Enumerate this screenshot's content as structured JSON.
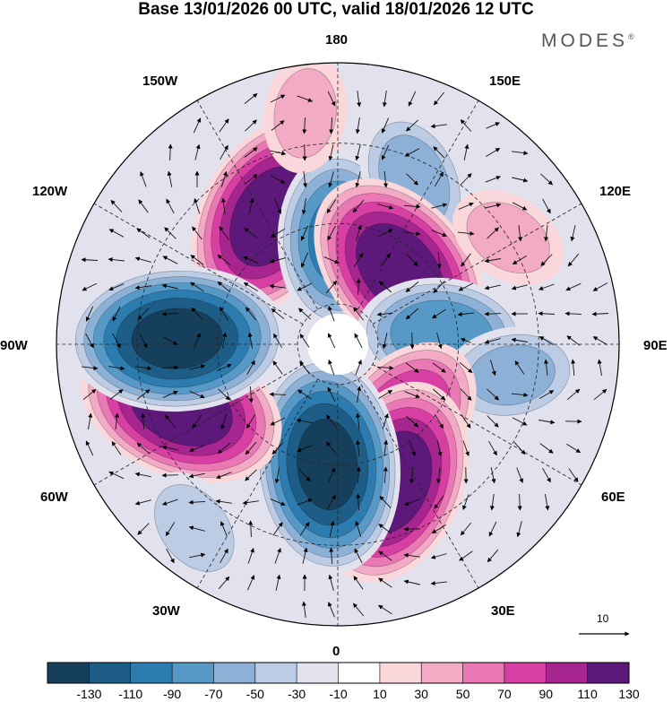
{
  "title": "Base 13/01/2026 00 UTC, valid 18/01/2026 12 UTC",
  "logo_text": "MODES",
  "logo_mark": "®",
  "longitude_labels": {
    "top": "180",
    "top_right": "150E",
    "right_upper": "120E",
    "right": "90E",
    "right_lower": "60E",
    "bottom_right": "30E",
    "bottom": "0",
    "bottom_left": "30W",
    "left_lower": "60W",
    "left": "90W",
    "left_upper": "120W",
    "top_left": "150W"
  },
  "reference_vector": {
    "value": "10",
    "icon": "arrow-right-icon"
  },
  "colorbar": {
    "ticks": [
      "-130",
      "-110",
      "-90",
      "-70",
      "-50",
      "-30",
      "-10",
      "10",
      "30",
      "50",
      "70",
      "90",
      "110",
      "130"
    ],
    "colors": [
      "#163f5c",
      "#1d5d86",
      "#2c7cb0",
      "#5799c6",
      "#8db1d6",
      "#bccce4",
      "#e2e2ef",
      "#ffffff",
      "#f9d7da",
      "#f2aac5",
      "#ea78b4",
      "#d73fa2",
      "#a7258f",
      "#5c1979"
    ]
  },
  "anomaly_centers": [
    {
      "name": "pos-150w",
      "sign": 1,
      "lon": -152,
      "colat": 36,
      "peak": 125
    },
    {
      "name": "neg-180",
      "sign": -1,
      "lon": 180,
      "colat": 26,
      "peak": 95
    },
    {
      "name": "neg-155e",
      "sign": -1,
      "lon": 155,
      "colat": 45,
      "peak": 60
    },
    {
      "name": "pos-140e",
      "sign": 1,
      "lon": 140,
      "colat": 24,
      "peak": 125
    },
    {
      "name": "neg-95e",
      "sign": -1,
      "lon": 95,
      "colat": 26,
      "peak": 85
    },
    {
      "name": "neg-80e",
      "sign": -1,
      "lon": 80,
      "colat": 44,
      "peak": 55
    },
    {
      "name": "pos-40e",
      "sign": 1,
      "lon": 40,
      "colat": 25,
      "peak": 95
    },
    {
      "name": "pos-20e",
      "sign": 1,
      "lon": 22,
      "colat": 37,
      "peak": 125
    },
    {
      "name": "neg-5w",
      "sign": -1,
      "lon": -5,
      "colat": 30,
      "peak": 135
    },
    {
      "name": "pos-65w",
      "sign": 1,
      "lon": -68,
      "colat": 42,
      "peak": 125
    },
    {
      "name": "neg-92w",
      "sign": -1,
      "lon": -92,
      "colat": 40,
      "peak": 135
    },
    {
      "name": "neg-35w",
      "sign": -1,
      "lon": -38,
      "colat": 58,
      "peak": 40
    },
    {
      "name": "pos-170w",
      "sign": 1,
      "lon": -172,
      "colat": 58,
      "peak": 35
    },
    {
      "name": "pos-125e",
      "sign": 1,
      "lon": 122,
      "colat": 50,
      "peak": 35
    }
  ]
}
